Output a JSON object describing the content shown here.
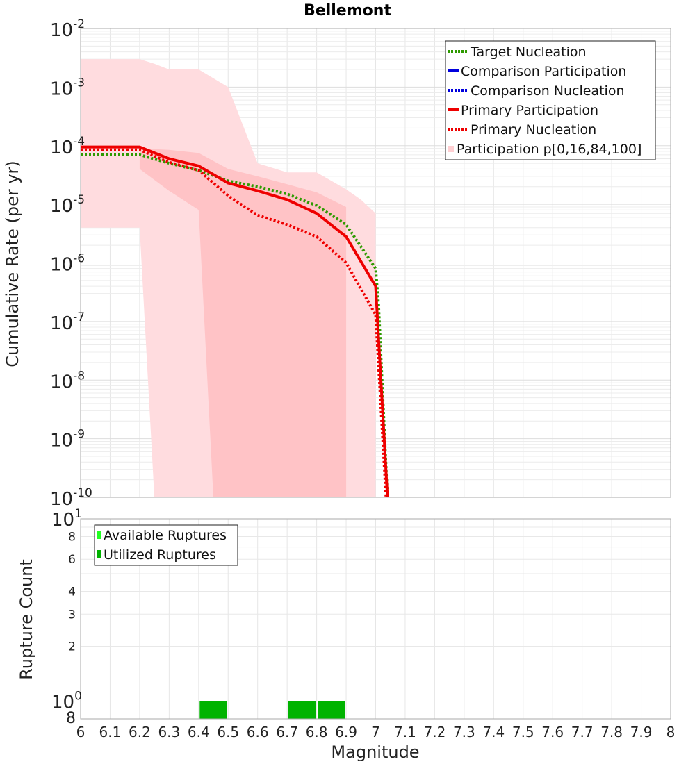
{
  "chart_data": [
    {
      "type": "line",
      "title": "Bellemont",
      "xlabel": "",
      "ylabel": "Cumulative Rate (per yr)",
      "yscale": "log",
      "xlim": [
        6,
        8
      ],
      "ylim": [
        1e-10,
        0.01
      ],
      "y_ticks": [
        {
          "base": "10",
          "exp": "-2"
        },
        {
          "base": "10",
          "exp": "-3"
        },
        {
          "base": "10",
          "exp": "-4"
        },
        {
          "base": "10",
          "exp": "-5"
        },
        {
          "base": "10",
          "exp": "-6"
        },
        {
          "base": "10",
          "exp": "-7"
        },
        {
          "base": "10",
          "exp": "-8"
        },
        {
          "base": "10",
          "exp": "-9"
        },
        {
          "base": "10",
          "exp": "-10"
        }
      ],
      "legend": {
        "position": "top-right",
        "entries": [
          "Target Nucleation",
          "Comparison Participation",
          "Comparison Nucleation",
          "Primary Participation",
          "Primary Nucleation",
          "Participation p[0,16,84,100]"
        ]
      },
      "bands": [
        {
          "name": "Participation p[0,100]",
          "color": "#ffdcdf",
          "x": [
            6.0,
            6.2,
            6.25,
            6.3,
            6.4,
            6.5,
            6.6,
            6.7,
            6.8,
            6.9,
            6.95,
            7.0
          ],
          "upper": [
            0.003,
            0.003,
            0.0025,
            0.002,
            0.002,
            0.001,
            5e-05,
            3.5e-05,
            3.5e-05,
            1.8e-05,
            1.2e-05,
            7e-06
          ],
          "lower": [
            4e-06,
            4e-06,
            1e-10,
            1e-10,
            1e-10,
            1e-10,
            1e-10,
            1e-10,
            1e-10,
            1e-10,
            1e-10,
            1e-10
          ]
        },
        {
          "name": "Participation p[16,84]",
          "color": "#ffc3c6",
          "x": [
            6.2,
            6.3,
            6.4,
            6.45,
            6.5,
            6.6,
            6.7,
            6.8,
            6.9
          ],
          "upper": [
            9e-05,
            8.5e-05,
            7.5e-05,
            5.5e-05,
            4e-05,
            3e-05,
            2.2e-05,
            1.6e-05,
            9e-06
          ],
          "lower": [
            4e-05,
            1.7e-05,
            8e-06,
            1e-10,
            1e-10,
            1e-10,
            1e-10,
            1e-10,
            1e-10
          ]
        }
      ],
      "series": [
        {
          "name": "Target Nucleation",
          "color": "#2e9a00",
          "dash": "dotted",
          "x": [
            6.0,
            6.1,
            6.2,
            6.3,
            6.4,
            6.5,
            6.6,
            6.7,
            6.8,
            6.9,
            7.0,
            7.01,
            7.04
          ],
          "y": [
            7e-05,
            7e-05,
            7e-05,
            5e-05,
            3.8e-05,
            2.5e-05,
            2e-05,
            1.5e-05,
            9.5e-06,
            4.5e-06,
            8e-07,
            2e-07,
            1e-10
          ]
        },
        {
          "name": "Primary Participation",
          "color": "#ee0000",
          "dash": "solid",
          "x": [
            6.0,
            6.1,
            6.2,
            6.3,
            6.4,
            6.5,
            6.6,
            6.7,
            6.8,
            6.9,
            7.0,
            7.04
          ],
          "y": [
            9.5e-05,
            9.5e-05,
            9.5e-05,
            6e-05,
            4.5e-05,
            2.3e-05,
            1.7e-05,
            1.2e-05,
            7e-06,
            2.8e-06,
            4e-07,
            1e-10
          ]
        },
        {
          "name": "Primary Nucleation",
          "color": "#ee0000",
          "dash": "dotted",
          "x": [
            6.0,
            6.1,
            6.2,
            6.3,
            6.4,
            6.5,
            6.6,
            6.7,
            6.8,
            6.9,
            7.0,
            7.035
          ],
          "y": [
            8.5e-05,
            8.5e-05,
            8.5e-05,
            5.2e-05,
            3.8e-05,
            1.4e-05,
            6.5e-06,
            4.5e-06,
            2.8e-06,
            1e-06,
            1.3e-07,
            1e-10
          ]
        }
      ]
    },
    {
      "type": "bar",
      "title": "",
      "xlabel": "Magnitude",
      "ylabel": "Rupture Count",
      "yscale": "log",
      "xlim": [
        6,
        8
      ],
      "ylim": [
        0.8,
        10
      ],
      "x_ticks": [
        "6",
        "6.1",
        "6.2",
        "6.3",
        "6.4",
        "6.5",
        "6.6",
        "6.7",
        "6.8",
        "6.9",
        "7",
        "7.1",
        "7.2",
        "7.3",
        "7.4",
        "7.5",
        "7.6",
        "7.7",
        "7.8",
        "7.9",
        "8"
      ],
      "y_ticks": [
        {
          "label": "10",
          "exp": "1",
          "value": 10
        },
        {
          "label": "8",
          "exp": "",
          "value": 8
        },
        {
          "label": "6",
          "exp": "",
          "value": 6
        },
        {
          "label": "4",
          "exp": "",
          "value": 4
        },
        {
          "label": "3",
          "exp": "",
          "value": 3
        },
        {
          "label": "2",
          "exp": "",
          "value": 2
        },
        {
          "label": "10",
          "exp": "0",
          "value": 1
        },
        {
          "label": "8",
          "exp": "",
          "value": 0.8
        }
      ],
      "legend": {
        "position": "top-left",
        "entries": [
          "Available Ruptures",
          "Utilized Ruptures"
        ]
      },
      "series": [
        {
          "name": "Available Ruptures",
          "color": "#22ff22",
          "bins": [
            [
              6.4,
              6.5
            ],
            [
              6.7,
              6.8
            ],
            [
              6.8,
              6.9
            ]
          ],
          "values": [
            1,
            1,
            1
          ]
        },
        {
          "name": "Utilized Ruptures",
          "color": "#00b300",
          "bins": [
            [
              6.4,
              6.5
            ],
            [
              6.7,
              6.8
            ],
            [
              6.8,
              6.9
            ]
          ],
          "values": [
            1,
            1,
            1
          ]
        }
      ]
    }
  ]
}
